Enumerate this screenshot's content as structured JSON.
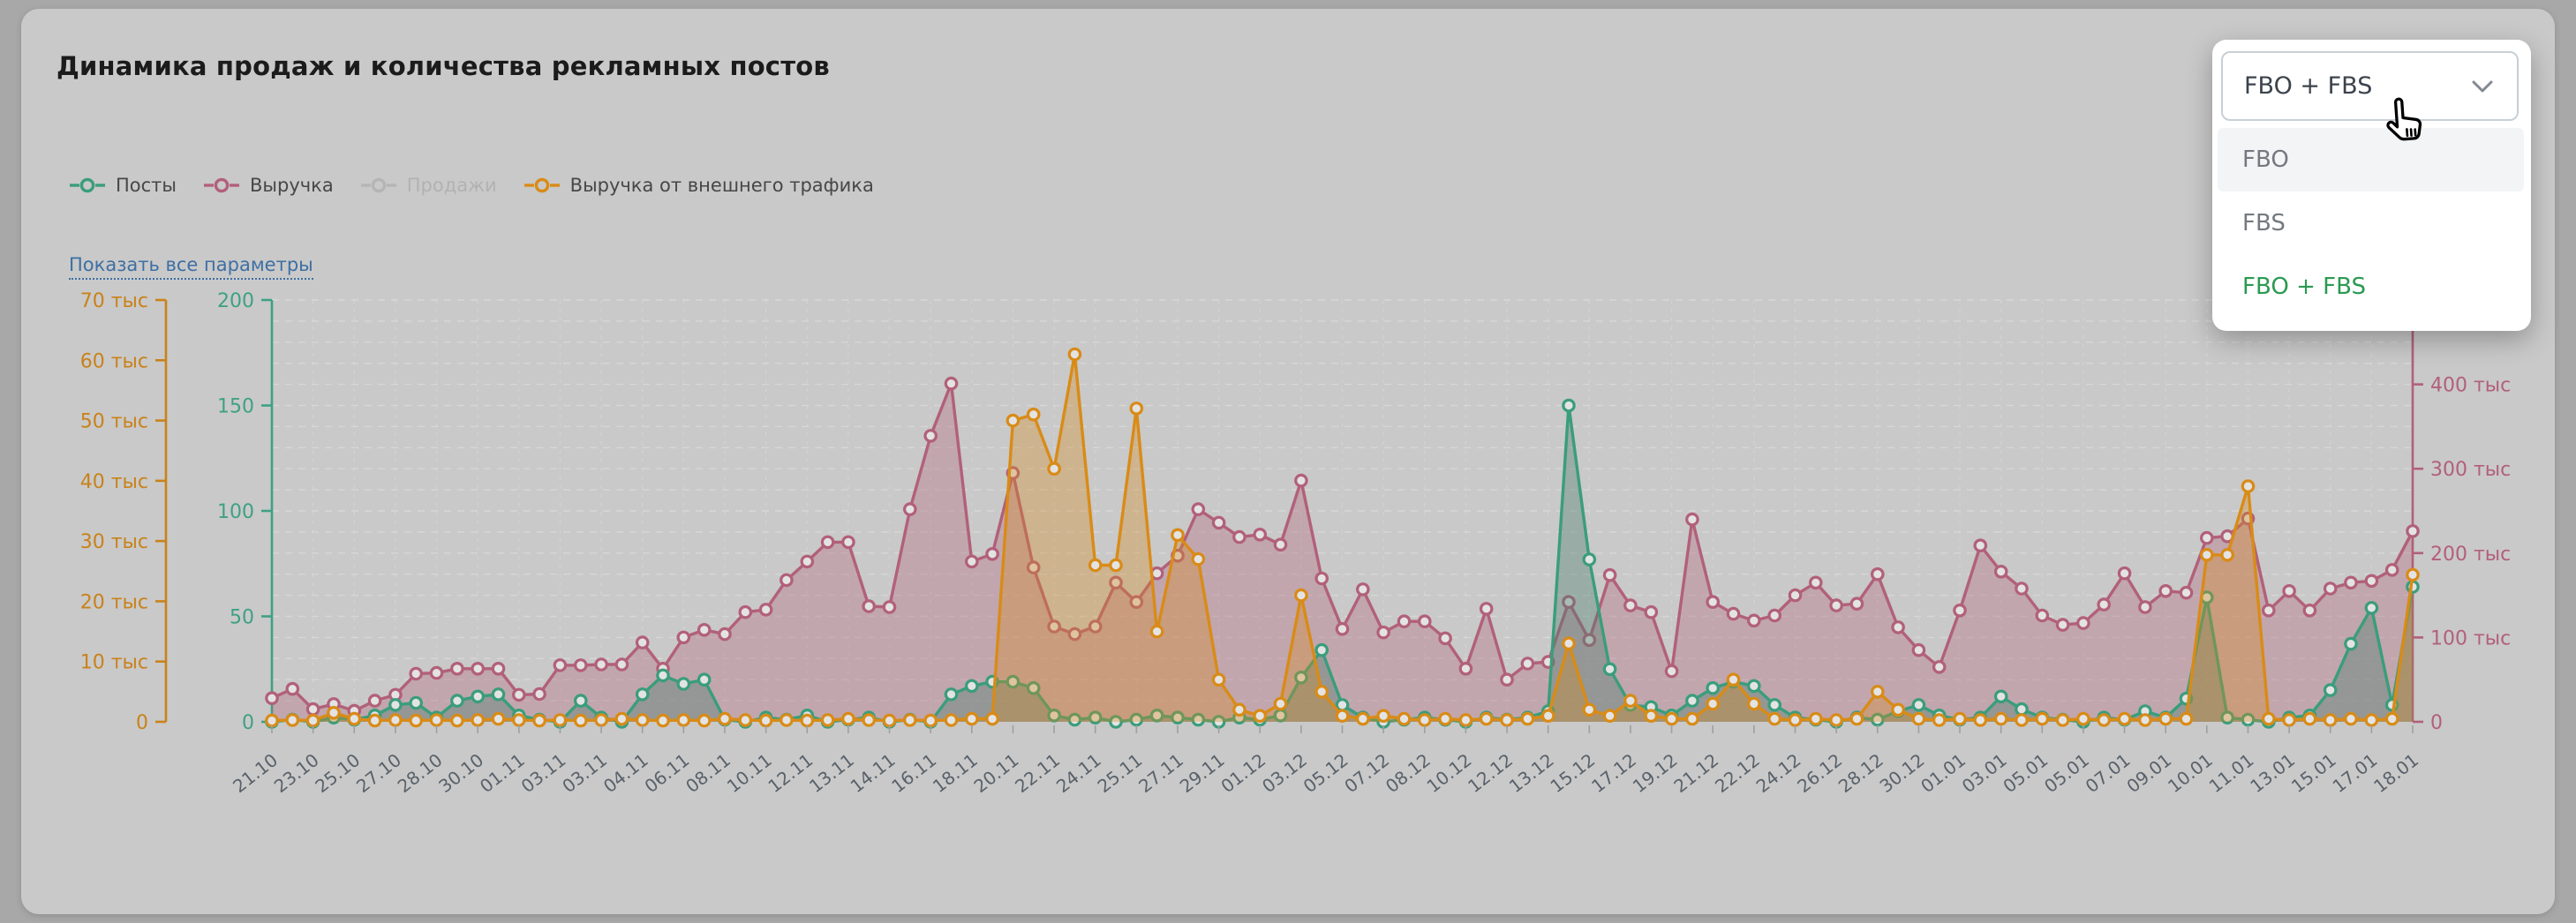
{
  "panel": {
    "title": "Динамика продаж и количества рекламных постов"
  },
  "legend": {
    "items": [
      {
        "label": "Посты",
        "color": "#3a9d7c",
        "disabled": false
      },
      {
        "label": "Выручка",
        "color": "#b2607a",
        "disabled": false
      },
      {
        "label": "Продажи",
        "color": "#b5b5b5",
        "disabled": true
      },
      {
        "label": "Выручка от внешнего трафика",
        "color": "#d98b17",
        "disabled": false
      }
    ]
  },
  "show_all_link": {
    "label": "Показать все параметры",
    "color": "#3e6fa3"
  },
  "filter_dropdown": {
    "selected": "FBO + FBS",
    "chevron_icon": "chevron-down",
    "options": [
      {
        "label": "FBO",
        "highlighted": true,
        "selected": false
      },
      {
        "label": "FBS",
        "highlighted": false,
        "selected": false
      },
      {
        "label": "FBO + FBS",
        "highlighted": false,
        "selected": true
      }
    ]
  },
  "cursor": {
    "type": "hand-pointer"
  },
  "chart_data": {
    "type": "line",
    "title": "Динамика продаж и количества рекламных постов",
    "grid": true,
    "legend_position": "top-left",
    "x_labels": [
      "21.10",
      "23.10",
      "25.10",
      "27.10",
      "28.10",
      "30.10",
      "01.11",
      "03.11",
      "03.11",
      "04.11",
      "06.11",
      "08.11",
      "10.11",
      "12.11",
      "13.11",
      "14.11",
      "16.11",
      "18.11",
      "20.11",
      "22.11",
      "24.11",
      "25.11",
      "27.11",
      "29.11",
      "01.12",
      "03.12",
      "05.12",
      "07.12",
      "08.12",
      "10.12",
      "12.12",
      "13.12",
      "15.12",
      "17.12",
      "19.12",
      "21.12",
      "22.12",
      "24.12",
      "26.12",
      "28.12",
      "30.12",
      "01.01",
      "03.01",
      "05.01",
      "05.01",
      "07.01",
      "09.01",
      "10.01",
      "11.01",
      "13.01",
      "15.01",
      "17.01",
      "18.01"
    ],
    "label_step": 2,
    "axes": {
      "ext": {
        "side": "far-left",
        "color": "#c9821a",
        "min": 0,
        "max": 70,
        "tick_values": [
          0,
          10,
          20,
          30,
          40,
          50,
          60,
          70
        ],
        "ticks": [
          "0",
          "10 тыс",
          "20 тыс",
          "30 тыс",
          "40 тыс",
          "50 тыс",
          "60 тыс",
          "70 тыс"
        ]
      },
      "posts": {
        "side": "left",
        "color": "#3ea183",
        "min": 0,
        "max": 200,
        "tick_values": [
          0,
          50,
          100,
          150,
          200
        ],
        "ticks": [
          "0",
          "50",
          "100",
          "150",
          "200"
        ]
      },
      "revenue": {
        "side": "right",
        "color": "#b2607a",
        "min": 0,
        "max": 500,
        "tick_values": [
          0,
          100,
          200,
          300,
          400
        ],
        "ticks": [
          "0",
          "100 тыс",
          "200 тыс",
          "300 тыс",
          "400 тыс"
        ]
      }
    },
    "series": [
      {
        "name": "Выручка",
        "axis": "revenue",
        "color": "#b2607a",
        "fill": "rgba(177,93,119,0.33)",
        "unit": "тыс",
        "values": [
          28,
          39,
          15,
          21,
          13,
          25,
          32,
          57,
          58,
          63,
          63,
          63,
          32,
          33,
          67,
          67,
          68,
          68,
          94,
          63,
          100,
          109,
          104,
          130,
          133,
          168,
          190,
          213,
          213,
          137,
          136,
          252,
          339,
          401,
          190,
          199,
          295,
          183,
          113,
          104,
          113,
          165,
          142,
          176,
          197,
          252,
          236,
          219,
          222,
          210,
          286,
          170,
          110,
          157,
          106,
          119,
          119,
          99,
          63,
          134,
          50,
          69,
          71,
          142,
          97,
          174,
          138,
          130,
          60,
          240,
          142,
          128,
          120,
          126,
          150,
          165,
          138,
          140,
          175,
          112,
          85,
          65,
          132,
          209,
          178,
          158,
          126,
          115,
          117,
          139,
          176,
          136,
          155,
          153,
          218,
          220,
          241,
          132,
          155,
          132,
          158,
          165,
          167,
          180,
          226
        ]
      },
      {
        "name": "Посты",
        "axis": "posts",
        "color": "#3a9d7c",
        "fill": "rgba(75,125,108,0.38)",
        "unit": "",
        "values": [
          0,
          1,
          0,
          2,
          1,
          3,
          8,
          9,
          2,
          10,
          12,
          13,
          3,
          1,
          0,
          10,
          2,
          0,
          13,
          22,
          18,
          20,
          1,
          0,
          2,
          1,
          3,
          0,
          1,
          2,
          0,
          1,
          0,
          13,
          17,
          19,
          19,
          16,
          3,
          1,
          2,
          0,
          1,
          3,
          2,
          1,
          0,
          2,
          1,
          3,
          21,
          34,
          8,
          2,
          0,
          1,
          2,
          1,
          0,
          2,
          1,
          2,
          5,
          150,
          77,
          25,
          8,
          7,
          3,
          10,
          16,
          19,
          17,
          8,
          2,
          1,
          0,
          2,
          1,
          5,
          8,
          3,
          1,
          2,
          12,
          6,
          2,
          1,
          0,
          2,
          1,
          5,
          2,
          11,
          59,
          2,
          1,
          0,
          2,
          3,
          15,
          37,
          54,
          8,
          64
        ]
      },
      {
        "name": "Продажи",
        "axis": "posts",
        "color": "#b5b5b5",
        "fill": "rgba(160,160,160,0.2)",
        "unit": "",
        "hidden": true,
        "values": []
      },
      {
        "name": "Выручка от внешнего трафика",
        "axis": "ext",
        "color": "#d98b17",
        "fill": "rgba(214,137,28,0.34)",
        "unit": "тыс",
        "values": [
          0.2,
          0.3,
          0.2,
          1.5,
          0.5,
          0.2,
          0.3,
          0.2,
          0.3,
          0.2,
          0.3,
          0.5,
          0.3,
          0.2,
          0.3,
          0.2,
          0.3,
          0.5,
          0.3,
          0.2,
          0.3,
          0.2,
          0.5,
          0.3,
          0.2,
          0.3,
          0.2,
          0.3,
          0.5,
          0.3,
          0.2,
          0.3,
          0.2,
          0.3,
          0.5,
          0.5,
          50,
          51,
          42,
          61,
          26,
          26,
          52,
          15,
          31,
          27,
          7,
          2,
          1,
          3,
          21,
          5,
          1,
          0.5,
          1,
          0.5,
          0.3,
          0.5,
          0.3,
          0.5,
          0.3,
          0.5,
          1,
          13,
          2,
          1,
          3.5,
          1,
          0.5,
          0.5,
          3,
          7,
          3,
          0.5,
          0.3,
          0.5,
          0.3,
          0.5,
          5,
          2,
          0.5,
          0.3,
          0.5,
          0.3,
          0.5,
          0.3,
          0.5,
          0.3,
          0.5,
          0.3,
          0.5,
          0.3,
          0.5,
          0.5,
          27.7,
          27.7,
          39.1,
          0.5,
          0.3,
          0.5,
          0.3,
          0.5,
          0.3,
          0.5,
          24.4
        ]
      }
    ]
  }
}
